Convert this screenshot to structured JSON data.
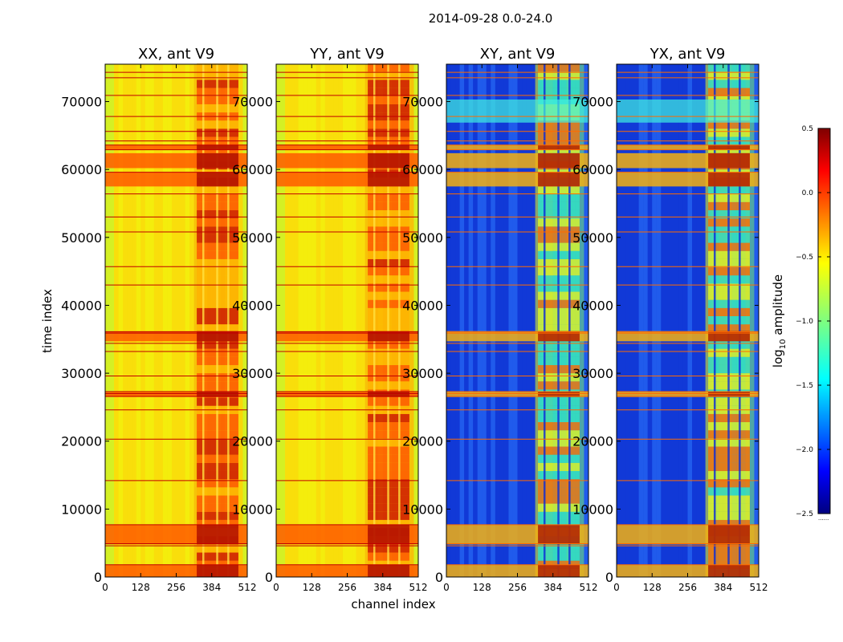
{
  "figure": {
    "suptitle": "2014-09-28 0.0-24.0",
    "ylabel": "time index",
    "xlabel": "channel index"
  },
  "chart_data": {
    "type": "heatmap",
    "panels": [
      {
        "title": "XX, ant V9",
        "scheme": "auto"
      },
      {
        "title": "YY, ant V9",
        "scheme": "auto"
      },
      {
        "title": "XY, ant V9",
        "scheme": "cross"
      },
      {
        "title": "YX, ant V9",
        "scheme": "cross"
      }
    ],
    "x_ticks": [
      0,
      128,
      256,
      384,
      512
    ],
    "x_range": [
      0,
      512
    ],
    "y_ticks": [
      0,
      10000,
      20000,
      30000,
      40000,
      50000,
      60000,
      70000
    ],
    "y_range": [
      0,
      75500
    ],
    "colorbar": {
      "label_prefix": "log",
      "label_sub": "10",
      "label_suffix": " amplitude",
      "ticks": [
        "0.5",
        "0.0",
        "−0.5",
        "−1.0",
        "−1.5",
        "−2.0",
        "−2.5"
      ],
      "tick_values": [
        0.5,
        0.0,
        -0.5,
        -1.0,
        -1.5,
        -2.0,
        -2.5
      ],
      "range": [
        -2.5,
        0.5
      ],
      "colormap": "jet",
      "extra_label": "......"
    },
    "bright_channel_range": [
      330,
      480
    ],
    "strong_bands": [
      [
        0,
        1800
      ],
      [
        4800,
        7700
      ],
      [
        57500,
        59600
      ],
      [
        60200,
        62400
      ],
      [
        62900,
        63600
      ],
      [
        26500,
        27300
      ],
      [
        34700,
        36200
      ]
    ],
    "flag_lines": [
      1800,
      4600,
      4900,
      7700,
      14200,
      20300,
      24600,
      26600,
      27000,
      27300,
      29600,
      33200,
      34400,
      35900,
      36100,
      43000,
      45700,
      50800,
      53000,
      56400,
      59600,
      62900,
      63600,
      64200,
      65600,
      67800,
      70900,
      73500,
      74300
    ]
  }
}
